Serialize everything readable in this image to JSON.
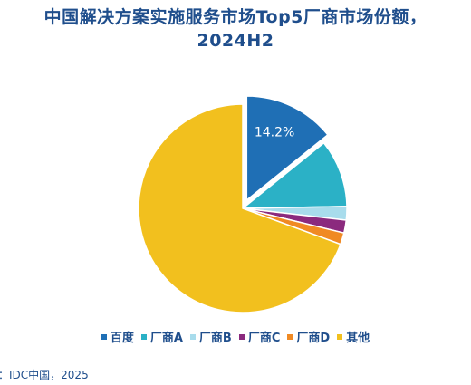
{
  "chart_data": {
    "type": "pie",
    "title_line1": "中国解决方案实施服务市场Top5厂商市场份额，",
    "title_line2": "2024H2",
    "slices": [
      {
        "name": "百度",
        "value": 14.2,
        "label": "14.2%",
        "color": "#1F6FB5",
        "exploded": true
      },
      {
        "name": "厂商A",
        "value": 10.5,
        "color": "#2BB1C6",
        "exploded": false
      },
      {
        "name": "厂商B",
        "value": 2.1,
        "color": "#A8DCEC",
        "exploded": false
      },
      {
        "name": "厂商C",
        "value": 2.0,
        "color": "#8B2A7E",
        "exploded": false
      },
      {
        "name": "厂商D",
        "value": 1.8,
        "color": "#F08A24",
        "exploded": false
      },
      {
        "name": "其他",
        "value": 69.4,
        "color": "#F2C01E",
        "exploded": false
      }
    ],
    "legend_position": "bottom"
  },
  "source": "：IDC中国，2025"
}
